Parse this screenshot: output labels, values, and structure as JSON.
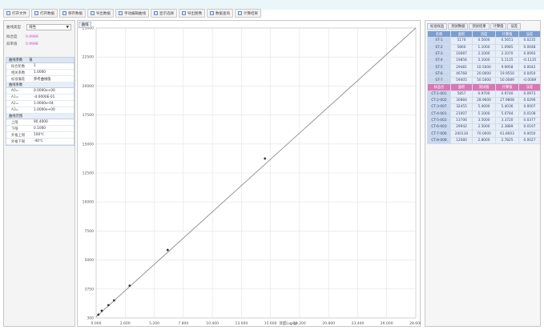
{
  "toolbar": {
    "buttons": [
      {
        "label": "打开文件"
      },
      {
        "label": "打开数据"
      },
      {
        "label": "保存数据"
      },
      {
        "label": "导出数据"
      },
      {
        "label": "手动编辑曲线"
      },
      {
        "label": "显示选择"
      },
      {
        "label": "导出图像"
      },
      {
        "label": "数据查询"
      },
      {
        "label": "计算结果"
      }
    ]
  },
  "left_panel": {
    "select_label": "曲线类型",
    "select_value": "线性",
    "r_label": "拟合度",
    "r_value": "0.9999",
    "k_label": "斜率值",
    "k_value": "0.9998",
    "params_header": [
      "曲线参数",
      "值"
    ],
    "params": [
      {
        "k": "拟合阶数",
        "v": "1"
      },
      {
        "k": "相关系数",
        "v": "1.0000"
      },
      {
        "k": "标准偏差",
        "v": "参考曲线值"
      }
    ],
    "coef_section": "曲线系数",
    "coefs": [
      {
        "k": "A0=",
        "v": "0.0000e+00"
      },
      {
        "k": "A1=",
        "v": "-4.0000E-01"
      },
      {
        "k": "A2=",
        "v": "1.0000e-04"
      },
      {
        "k": "A3=",
        "v": "1.0000e+00"
      }
    ],
    "range_section": "曲线范围",
    "ranges": [
      {
        "k": "上限",
        "v": "90.4000"
      },
      {
        "k": "下限",
        "v": "0.1000"
      },
      {
        "k": "外推上限",
        "v": "100℃"
      },
      {
        "k": "外推下限",
        "v": "-40℃"
      }
    ]
  },
  "chart_tab": "曲线",
  "chart_data": {
    "type": "scatter",
    "xlabel": "浓度(ug/g)",
    "x_ticks": [
      "0.000",
      "2.600",
      "5.200",
      "7.800",
      "10.400",
      "13.000",
      "15.600",
      "18.200",
      "20.800",
      "23.400",
      "26.000",
      "28.600"
    ],
    "y_ticks": [
      "300",
      "3750",
      "5000",
      "7500",
      "10000",
      "12500",
      "15000",
      "17500",
      "20000",
      "22500",
      "25000"
    ],
    "xlim": [
      0,
      28.6
    ],
    "ylim": [
      0,
      26000
    ],
    "fit_line": {
      "x0": 0,
      "y0": 100,
      "x1": 28.6,
      "y1": 26500
    },
    "points": [
      {
        "x": 0.2,
        "y": 300
      },
      {
        "x": 0.5,
        "y": 650
      },
      {
        "x": 1.1,
        "y": 1150
      },
      {
        "x": 1.6,
        "y": 1580
      },
      {
        "x": 3.0,
        "y": 2900
      },
      {
        "x": 6.4,
        "y": 6100
      },
      {
        "x": 15.1,
        "y": 14300
      }
    ],
    "grid": true
  },
  "right_panel": {
    "tabs": [
      "标准样品",
      "测试数据",
      "测试结果",
      "计算值",
      "误差"
    ],
    "header1": [
      "名称",
      "面积",
      "浓度",
      "计算值",
      "误差"
    ],
    "rows1": [
      [
        "ST-1",
        "5170",
        "0.5600",
        "0.5651",
        "0.0235"
      ],
      [
        "ST-2",
        "5860",
        "1.1000",
        "1.0985",
        "0.0048"
      ],
      [
        "ST-3",
        "10087",
        "2.1000",
        "2.1070",
        "0.0093"
      ],
      [
        "ST-4",
        "19856",
        "5.1000",
        "5.1125",
        "-0.1135"
      ],
      [
        "ST-5",
        "29481",
        "10.5000",
        "9.9958",
        "0.0042"
      ],
      [
        "ST-6",
        "46768",
        "20.0000",
        "19.9550",
        "0.0450"
      ],
      [
        "ST-7",
        "59405",
        "50.5000",
        "50.0089",
        "-0.0089"
      ]
    ],
    "header2": [
      "样品名",
      "面积",
      "测试值",
      "计算值",
      "误差"
    ],
    "rows2": [
      [
        "CT-1-001",
        "5857",
        "0.9700",
        "0.9740",
        "0.0973"
      ],
      [
        "CT-2-002",
        "30884",
        "28.9600",
        "27.9808",
        "0.0296"
      ],
      [
        "CT-3-007",
        "32455",
        "5.4000",
        "5.4036",
        "0.0007"
      ],
      [
        "CT-4-001",
        "21007",
        "5.1000",
        "5.0784",
        "0.0108"
      ],
      [
        "CT-5-002",
        "13706",
        "3.5000",
        "3.3720",
        "0.0377"
      ],
      [
        "CT-6-003",
        "29942",
        "2.5000",
        "2.3889",
        "0.0197"
      ],
      [
        "CT-7-006",
        "200130",
        "70.0000",
        "61.8003",
        "0.0050"
      ],
      [
        "CT-8-008",
        "12080",
        "2.8000",
        "2.7825",
        "0.0027"
      ]
    ]
  }
}
